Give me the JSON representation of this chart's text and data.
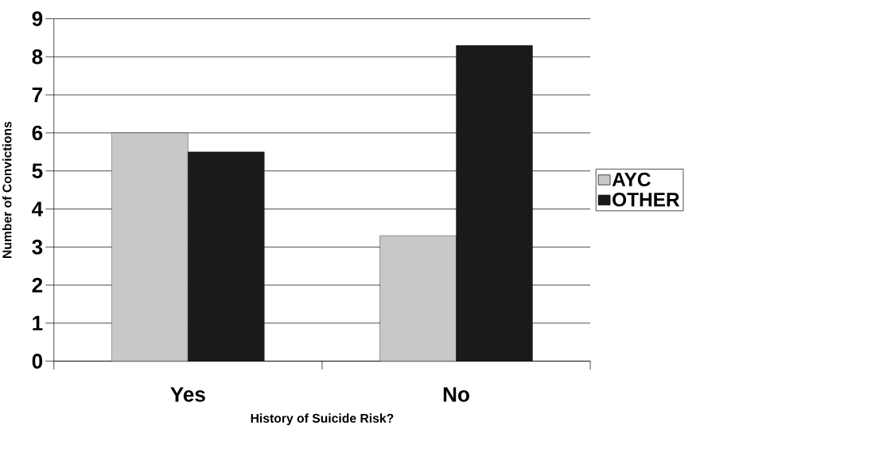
{
  "chart_data": {
    "type": "bar",
    "xlabel": "History of Suicide Risk?",
    "ylabel": "Number of Convictions",
    "categories": [
      "Yes",
      "No"
    ],
    "series": [
      {
        "name": "AYC",
        "color": "#c8c8c8",
        "values": [
          6,
          3.3
        ]
      },
      {
        "name": "OTHER",
        "color": "#1a1a1a",
        "values": [
          5.5,
          8.3
        ]
      }
    ],
    "ylim": [
      0,
      9
    ],
    "yticks": [
      0,
      1,
      2,
      3,
      4,
      5,
      6,
      7,
      8,
      9
    ],
    "grid": "y",
    "legend": "right"
  }
}
